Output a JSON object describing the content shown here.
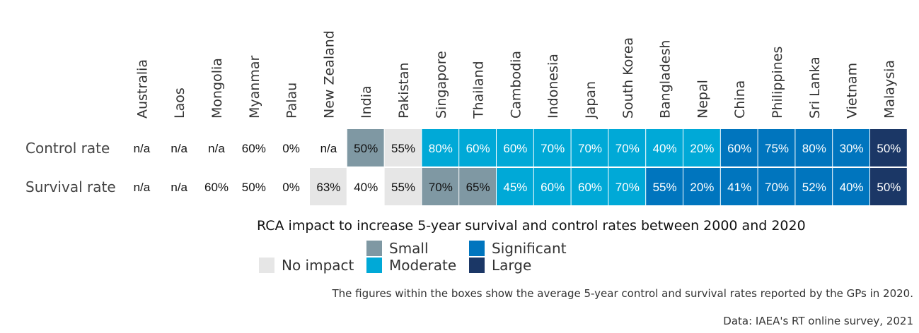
{
  "chart_data": {
    "type": "heatmap",
    "rows": [
      "Control rate",
      "Survival rate"
    ],
    "columns": [
      "Australia",
      "Laos",
      "Mongolia",
      "Myanmar",
      "Palau",
      "New Zealand",
      "India",
      "Pakistan",
      "Singapore",
      "Thailand",
      "Cambodia",
      "Indonesia",
      "Japan",
      "South Korea",
      "Bangladesh",
      "Nepal",
      "China",
      "Philippines",
      "Sri Lanka",
      "Vietnam",
      "Malaysia"
    ],
    "values": [
      [
        "n/a",
        "n/a",
        "n/a",
        "60%",
        "0%",
        "n/a",
        "50%",
        "55%",
        "80%",
        "60%",
        "60%",
        "70%",
        "70%",
        "70%",
        "40%",
        "20%",
        "60%",
        "75%",
        "80%",
        "30%",
        "50%"
      ],
      [
        "n/a",
        "n/a",
        "60%",
        "50%",
        "0%",
        "63%",
        "40%",
        "55%",
        "70%",
        "65%",
        "45%",
        "60%",
        "60%",
        "70%",
        "55%",
        "20%",
        "41%",
        "70%",
        "52%",
        "40%",
        "50%"
      ]
    ],
    "categories_matrix": [
      [
        "none",
        "none",
        "none",
        "none",
        "none",
        "none",
        "small",
        "no_impact",
        "moderate",
        "moderate",
        "moderate",
        "moderate",
        "moderate",
        "moderate",
        "moderate",
        "moderate",
        "significant",
        "significant",
        "significant",
        "significant",
        "large"
      ],
      [
        "none",
        "none",
        "none",
        "none",
        "none",
        "no_impact",
        "none",
        "no_impact",
        "small",
        "small",
        "moderate",
        "moderate",
        "moderate",
        "moderate",
        "significant",
        "significant",
        "significant",
        "significant",
        "significant",
        "significant",
        "large"
      ]
    ],
    "legend_title": "RCA impact to increase 5-year survival and control rates between 2000 and 2020",
    "legend": [
      {
        "key": "no_impact",
        "label": "No impact",
        "color": "#e6e6e6"
      },
      {
        "key": "small",
        "label": "Small",
        "color": "#7f98a3"
      },
      {
        "key": "moderate",
        "label": "Moderate",
        "color": "#00a9d7"
      },
      {
        "key": "significant",
        "label": "Significant",
        "color": "#0075be"
      },
      {
        "key": "large",
        "label": "Large",
        "color": "#1b3766"
      }
    ]
  },
  "notes": {
    "figures_note": "The figures within the boxes show the average 5-year control and survival rates reported by the GPs in 2020.",
    "source": "Data: IAEA's RT online survey, 2021"
  }
}
